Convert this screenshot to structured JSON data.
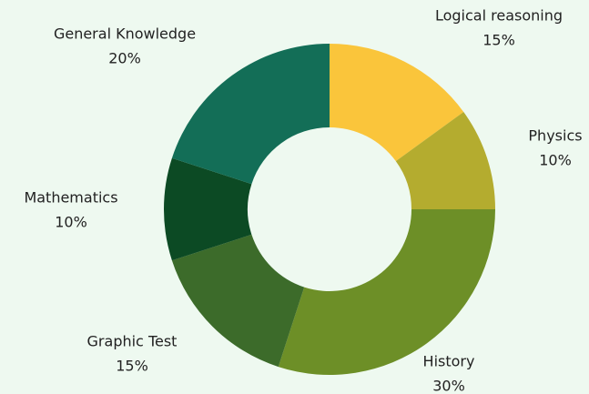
{
  "chart_data": {
    "type": "donut",
    "categories": [
      "Logical reasoning",
      "Physics",
      "History",
      "Graphic Test",
      "Mathematics",
      "General Knowledge"
    ],
    "values": [
      15,
      10,
      30,
      15,
      10,
      20
    ],
    "value_labels": [
      "15%",
      "10%",
      "30%",
      "15%",
      "10%",
      "20%"
    ],
    "colors": [
      "#fac53b",
      "#b4ac2f",
      "#6d8f27",
      "#3c6b2a",
      "#0c4a24",
      "#136e57"
    ]
  }
}
